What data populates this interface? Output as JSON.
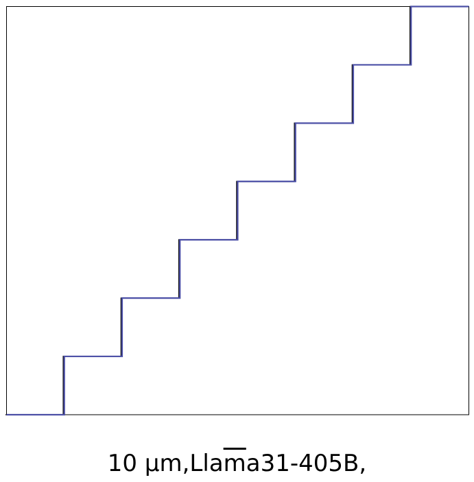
{
  "caption": {
    "prefix": "10 μm,Lla",
    "overlined": "m",
    "suffix": "a31-405B,"
  },
  "chart_data": {
    "type": "line",
    "step": true,
    "title": "",
    "xlabel": "",
    "ylabel": "",
    "grid": false,
    "axes_ticks": false,
    "series": [
      {
        "x": [
          0,
          1,
          1,
          2,
          2,
          3,
          3,
          4,
          4,
          5,
          5,
          6,
          6,
          7,
          7,
          8
        ],
        "y": [
          0,
          0,
          1,
          1,
          2,
          2,
          3,
          3,
          4,
          4,
          5,
          5,
          6,
          6,
          7,
          7
        ],
        "color": "#4b4fa6",
        "shadow_color": "#111111"
      }
    ],
    "xlim": [
      0,
      8
    ],
    "ylim": [
      0,
      7
    ]
  }
}
